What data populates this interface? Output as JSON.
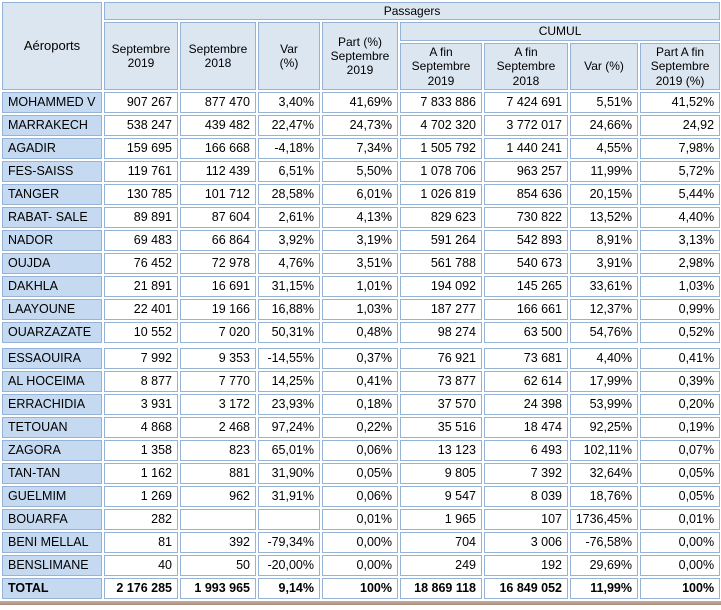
{
  "table": {
    "group_header": "Passagers",
    "cumul_header": "CUMUL",
    "corner_header": "Aéroports",
    "columns": [
      "Septembre 2019",
      "Septembre 2018",
      "Var (%)",
      "Part (%) Septembre 2019",
      "A fin Septembre 2019",
      "A fin Septembre 2018",
      "Var (%)",
      "Part A fin Septembre 2019 (%)"
    ],
    "groups": [
      [
        {
          "name": "MOHAMMED V",
          "values": [
            "907 267",
            "877 470",
            "3,40%",
            "41,69%",
            "7 833 886",
            "7 424 691",
            "5,51%",
            "41,52%"
          ]
        },
        {
          "name": "MARRAKECH",
          "values": [
            "538 247",
            "439 482",
            "22,47%",
            "24,73%",
            "4 702 320",
            "3 772 017",
            "24,66%",
            "24,92"
          ]
        },
        {
          "name": "AGADIR",
          "values": [
            "159 695",
            "166 668",
            "-4,18%",
            "7,34%",
            "1 505 792",
            "1 440 241",
            "4,55%",
            "7,98%"
          ]
        },
        {
          "name": "FES-SAISS",
          "values": [
            "119 761",
            "112 439",
            "6,51%",
            "5,50%",
            "1 078 706",
            "963 257",
            "11,99%",
            "5,72%"
          ]
        },
        {
          "name": "TANGER",
          "values": [
            "130 785",
            "101 712",
            "28,58%",
            "6,01%",
            "1 026 819",
            "854 636",
            "20,15%",
            "5,44%"
          ]
        },
        {
          "name": "RABAT- SALE",
          "values": [
            "89 891",
            "87 604",
            "2,61%",
            "4,13%",
            "829 623",
            "730 822",
            "13,52%",
            "4,40%"
          ]
        },
        {
          "name": "NADOR",
          "values": [
            "69 483",
            "66 864",
            "3,92%",
            "3,19%",
            "591 264",
            "542 893",
            "8,91%",
            "3,13%"
          ]
        },
        {
          "name": "OUJDA",
          "values": [
            "76 452",
            "72 978",
            "4,76%",
            "3,51%",
            "561 788",
            "540 673",
            "3,91%",
            "2,98%"
          ]
        },
        {
          "name": "DAKHLA",
          "values": [
            "21 891",
            "16 691",
            "31,15%",
            "1,01%",
            "194 092",
            "145 265",
            "33,61%",
            "1,03%"
          ]
        },
        {
          "name": "LAAYOUNE",
          "values": [
            "22 401",
            "19 166",
            "16,88%",
            "1,03%",
            "187 277",
            "166 661",
            "12,37%",
            "0,99%"
          ]
        },
        {
          "name": "OUARZAZATE",
          "values": [
            "10 552",
            "7 020",
            "50,31%",
            "0,48%",
            "98 274",
            "63 500",
            "54,76%",
            "0,52%"
          ]
        }
      ],
      [
        {
          "name": "ESSAOUIRA",
          "values": [
            "7 992",
            "9 353",
            "-14,55%",
            "0,37%",
            "76 921",
            "73 681",
            "4,40%",
            "0,41%"
          ]
        },
        {
          "name": "AL HOCEIMA",
          "values": [
            "8 877",
            "7 770",
            "14,25%",
            "0,41%",
            "73 877",
            "62 614",
            "17,99%",
            "0,39%"
          ]
        },
        {
          "name": "ERRACHIDIA",
          "values": [
            "3 931",
            "3 172",
            "23,93%",
            "0,18%",
            "37 570",
            "24 398",
            "53,99%",
            "0,20%"
          ]
        },
        {
          "name": "TETOUAN",
          "values": [
            "4 868",
            "2 468",
            "97,24%",
            "0,22%",
            "35 516",
            "18 474",
            "92,25%",
            "0,19%"
          ]
        },
        {
          "name": "ZAGORA",
          "values": [
            "1 358",
            "823",
            "65,01%",
            "0,06%",
            "13 123",
            "6 493",
            "102,11%",
            "0,07%"
          ]
        },
        {
          "name": "TAN-TAN",
          "values": [
            "1 162",
            "881",
            "31,90%",
            "0,05%",
            "9 805",
            "7 392",
            "32,64%",
            "0,05%"
          ]
        },
        {
          "name": "GUELMIM",
          "values": [
            "1 269",
            "962",
            "31,91%",
            "0,06%",
            "9 547",
            "8 039",
            "18,76%",
            "0,05%"
          ]
        },
        {
          "name": "BOUARFA",
          "values": [
            "282",
            "",
            "",
            "0,01%",
            "1 965",
            "107",
            "1736,45%",
            "0,01%"
          ]
        },
        {
          "name": "BENI MELLAL",
          "values": [
            "81",
            "392",
            "-79,34%",
            "0,00%",
            "704",
            "3 006",
            "-76,58%",
            "0,00%"
          ]
        },
        {
          "name": "BENSLIMANE",
          "values": [
            "40",
            "50",
            "-20,00%",
            "0,00%",
            "249",
            "192",
            "29,69%",
            "0,00%"
          ]
        }
      ]
    ],
    "total_row": {
      "name": "TOTAL",
      "values": [
        "2 176 285",
        "1 993 965",
        "9,14%",
        "100%",
        "18 869 118",
        "16 849 052",
        "11,99%",
        "100%"
      ]
    },
    "colors": {
      "header_bg": "#dce6f1",
      "name_column_bg": "#c5d9f1",
      "border": "#95b3d7",
      "text": "#000000",
      "bottom_edge_line": "#b79a8c"
    }
  }
}
